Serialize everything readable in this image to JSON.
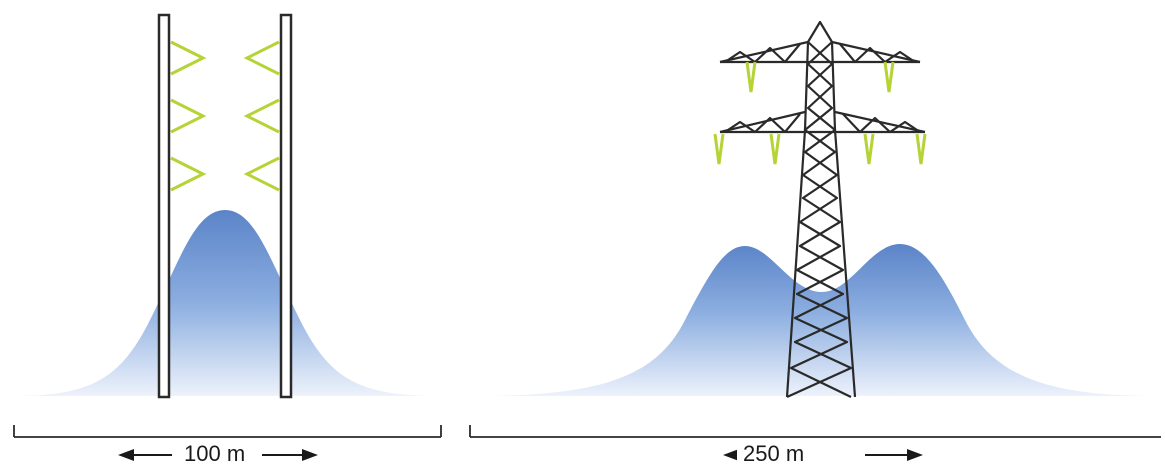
{
  "left_diagram": {
    "scale_label": "100 m"
  },
  "right_diagram": {
    "scale_label": "250 m"
  },
  "colors": {
    "field_top": "#5b84c8",
    "field_bottom": "#e8effa",
    "insulator": "#b5d334",
    "structure": "#2a2a2a"
  }
}
